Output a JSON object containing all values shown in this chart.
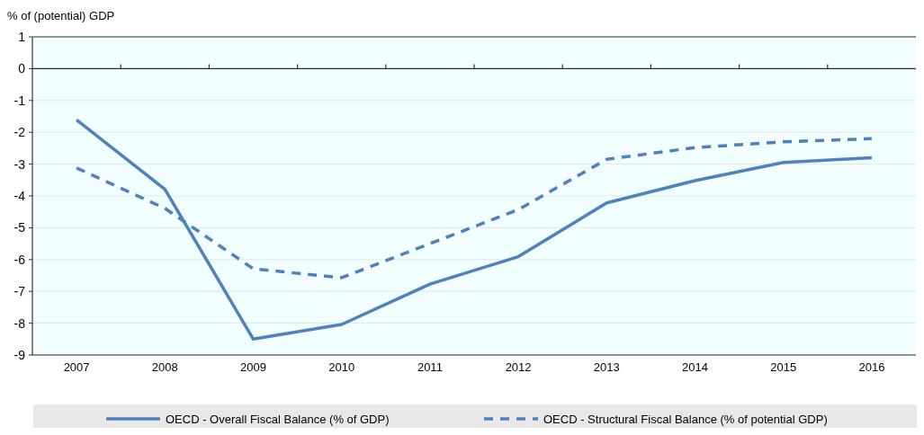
{
  "chart_data": {
    "type": "line",
    "ylabel": "% of (potential) GDP",
    "categories": [
      "2007",
      "2008",
      "2009",
      "2010",
      "2011",
      "2012",
      "2013",
      "2014",
      "2015",
      "2016"
    ],
    "series": [
      {
        "name": "OECD - Overall Fiscal Balance (% of GDP)",
        "color": "#4f81bd",
        "line_style": "solid",
        "values": [
          -1.61,
          -3.79,
          -8.5,
          -8.04,
          -6.77,
          -5.91,
          -4.22,
          -3.52,
          -2.95,
          -2.8
        ]
      },
      {
        "name": "OECD - Structural Fiscal Balance (% of potential GDP)",
        "color": "#4f81bd",
        "line_style": "dashed",
        "values": [
          -3.12,
          -4.39,
          -6.29,
          -6.57,
          -5.5,
          -4.43,
          -2.85,
          -2.48,
          -2.3,
          -2.2
        ]
      }
    ],
    "ylim": [
      -9,
      1
    ],
    "yticks": [
      1,
      0,
      -1,
      -2,
      -3,
      -4,
      -5,
      -6,
      -7,
      -8,
      -9
    ],
    "grid": "y",
    "legend": "bottom"
  }
}
